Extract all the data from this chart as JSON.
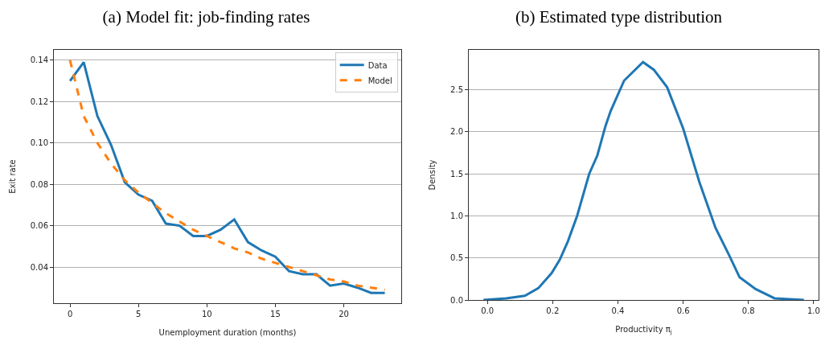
{
  "chart_data": [
    {
      "type": "line",
      "title": "(a) Model fit: job-finding rates",
      "xlabel": "Unemployment duration (months)",
      "ylabel": "Exit rate",
      "x": [
        0,
        1,
        2,
        3,
        4,
        5,
        6,
        7,
        8,
        9,
        10,
        11,
        12,
        13,
        14,
        15,
        16,
        17,
        18,
        19,
        20,
        21,
        22,
        23
      ],
      "series": [
        {
          "name": "Data",
          "color": "#1f77b4",
          "line_style": "solid",
          "values": [
            0.13,
            0.139,
            0.113,
            0.099,
            0.081,
            0.075,
            0.072,
            0.061,
            0.06,
            0.055,
            0.055,
            0.058,
            0.063,
            0.052,
            0.048,
            0.045,
            0.038,
            0.0365,
            0.0365,
            0.031,
            0.032,
            0.03,
            0.0275,
            0.0275
          ]
        },
        {
          "name": "Model",
          "color": "#ff7f0e",
          "line_style": "dashed",
          "values": [
            0.14,
            0.113,
            0.1,
            0.09,
            0.082,
            0.076,
            0.071,
            0.066,
            0.062,
            0.058,
            0.055,
            0.052,
            0.049,
            0.047,
            0.044,
            0.042,
            0.04,
            0.038,
            0.036,
            0.034,
            0.033,
            0.031,
            0.03,
            0.029
          ]
        }
      ],
      "xlim": [
        -1.18,
        24.2
      ],
      "xticks": [
        0,
        5,
        10,
        15,
        20
      ],
      "ylim": [
        0.0225,
        0.145
      ],
      "yticks": [
        0.04,
        0.06,
        0.08,
        {
          "value": 0.1,
          "label": "0.10"
        },
        0.12,
        0.14
      ],
      "grid": "y",
      "legend": "top right"
    },
    {
      "type": "line",
      "title": "(b) Estimated type distribution",
      "xlabel": "Productivity π$_{j}$",
      "ylabel": "Density",
      "x": [
        -0.012,
        0.058,
        0.115,
        0.156,
        0.197,
        0.222,
        0.247,
        0.275,
        0.312,
        0.337,
        0.362,
        0.378,
        0.419,
        0.477,
        0.51,
        0.551,
        0.6,
        0.65,
        0.699,
        0.74,
        0.773,
        0.822,
        0.88,
        0.97
      ],
      "series": [
        {
          "color": "#1f77b4",
          "line_style": "solid",
          "values": [
            0.0,
            0.02,
            0.05,
            0.14,
            0.32,
            0.48,
            0.7,
            1.0,
            1.5,
            1.72,
            2.07,
            2.25,
            2.61,
            2.83,
            2.74,
            2.53,
            2.04,
            1.4,
            0.86,
            0.54,
            0.27,
            0.13,
            0.02,
            0.0
          ]
        }
      ],
      "xlim": [
        -0.057,
        1.015
      ],
      "xticks": [
        {
          "value": 0,
          "label": "0.0"
        },
        0.2,
        0.4,
        0.6,
        0.8,
        {
          "value": 1,
          "label": "1.0"
        }
      ],
      "ylim": [
        0,
        2.976
      ],
      "yticks": [
        {
          "value": 0,
          "label": "0.0"
        },
        0.5,
        {
          "value": 1,
          "label": "1.0"
        },
        1.5,
        {
          "value": 2,
          "label": "2.0"
        },
        2.5
      ],
      "grid": "y",
      "legend": false
    }
  ]
}
